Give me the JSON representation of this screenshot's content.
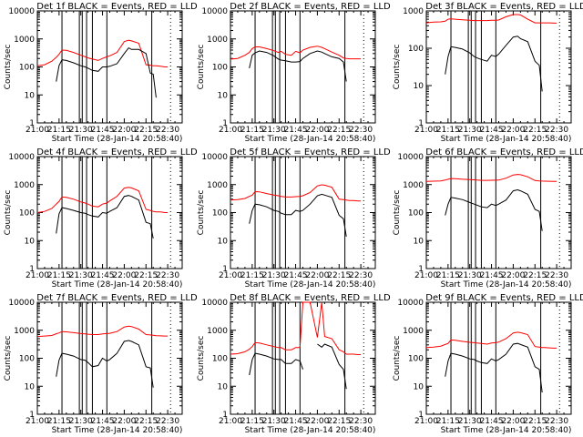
{
  "chart_data": {
    "common": {
      "type": "line",
      "xlabel": "Start Time (28-Jan-14 20:58:40)",
      "ylabel": "Counts/sec",
      "yscale": "log",
      "x_tick_labels": [
        "21:00",
        "21:15",
        "21:30",
        "21:45",
        "22:00",
        "22:15",
        "22:30"
      ],
      "x_range_minutes_after_2100": [
        0,
        100
      ],
      "legend": "BLACK = Events, RED = LLD",
      "series_colors": {
        "events": "#000000",
        "lld": "#ff0000"
      },
      "vertical_markers_minutes_after_2100": [
        17,
        29,
        31,
        34,
        38,
        48,
        79
      ],
      "dotted_marker_minutes_after_2100": 92,
      "x_samples_minutes": [
        0,
        5,
        10,
        13,
        15,
        17,
        20,
        25,
        30,
        33,
        35,
        38,
        42,
        45,
        48,
        50,
        55,
        60,
        63,
        65,
        70,
        75,
        78,
        80,
        82,
        85,
        88,
        90
      ]
    },
    "charts": [
      {
        "title": "Det 1f BLACK = Events, RED = LLD",
        "ylim": [
          1,
          10000
        ],
        "y_tick_labels": [
          "1",
          "10",
          "100",
          "1000",
          "10000"
        ],
        "events": [
          null,
          null,
          null,
          30,
          110,
          180,
          170,
          140,
          110,
          100,
          90,
          75,
          70,
          100,
          100,
          105,
          130,
          300,
          480,
          420,
          420,
          300,
          60,
          55,
          8,
          null,
          null,
          null
        ],
        "lld": [
          110,
          120,
          160,
          220,
          280,
          400,
          390,
          330,
          260,
          230,
          210,
          190,
          170,
          200,
          230,
          250,
          330,
          800,
          900,
          850,
          700,
          120,
          115,
          110,
          110,
          105,
          100,
          100
        ]
      },
      {
        "title": "Det 2f BLACK = Events, RED = LLD",
        "ylim": [
          1,
          10000
        ],
        "y_tick_labels": [
          "1",
          "10",
          "100",
          "1000",
          "10000"
        ],
        "events": [
          null,
          null,
          null,
          90,
          260,
          320,
          370,
          330,
          250,
          190,
          175,
          165,
          150,
          150,
          155,
          200,
          300,
          370,
          340,
          300,
          230,
          200,
          150,
          30,
          null,
          null,
          null,
          null
        ],
        "lld": [
          190,
          200,
          260,
          330,
          450,
          520,
          520,
          450,
          380,
          330,
          360,
          280,
          260,
          360,
          320,
          400,
          500,
          550,
          500,
          450,
          340,
          260,
          210,
          200,
          195,
          195,
          195,
          195
        ]
      },
      {
        "title": "Det 3f BLACK = Events, RED = LLD",
        "ylim": [
          1,
          1000
        ],
        "y_tick_labels": [
          "1",
          "10",
          "100",
          "1000"
        ],
        "events": [
          null,
          null,
          null,
          20,
          60,
          110,
          105,
          95,
          75,
          60,
          55,
          50,
          45,
          65,
          60,
          70,
          120,
          200,
          210,
          180,
          150,
          45,
          35,
          7,
          null,
          null,
          null,
          null
        ],
        "lld": [
          480,
          500,
          510,
          530,
          600,
          610,
          600,
          580,
          560,
          550,
          550,
          550,
          550,
          560,
          560,
          570,
          700,
          800,
          800,
          780,
          600,
          480,
          480,
          480,
          480,
          480,
          470,
          470
        ]
      },
      {
        "title": "Det 4f BLACK = Events, RED = LLD",
        "ylim": [
          1,
          10000
        ],
        "y_tick_labels": [
          "1",
          "10",
          "100",
          "1000",
          "10000"
        ],
        "events": [
          null,
          null,
          null,
          18,
          90,
          150,
          140,
          120,
          100,
          95,
          85,
          75,
          70,
          100,
          95,
          110,
          150,
          380,
          410,
          380,
          280,
          45,
          40,
          12,
          null,
          null,
          null,
          null
        ],
        "lld": [
          100,
          110,
          140,
          200,
          250,
          360,
          350,
          300,
          240,
          220,
          200,
          170,
          160,
          200,
          220,
          260,
          380,
          750,
          800,
          760,
          600,
          130,
          120,
          110,
          105,
          105,
          100,
          100
        ]
      },
      {
        "title": "Det 5f BLACK = Events, RED = LLD",
        "ylim": [
          1,
          10000
        ],
        "y_tick_labels": [
          "1",
          "10",
          "100",
          "1000",
          "10000"
        ],
        "events": [
          null,
          null,
          null,
          40,
          120,
          200,
          190,
          160,
          120,
          110,
          95,
          85,
          85,
          120,
          110,
          120,
          200,
          400,
          450,
          420,
          350,
          80,
          60,
          14,
          null,
          null,
          null,
          null
        ],
        "lld": [
          280,
          290,
          320,
          380,
          420,
          560,
          550,
          480,
          420,
          400,
          380,
          360,
          360,
          370,
          380,
          400,
          520,
          900,
          980,
          950,
          800,
          300,
          290,
          280,
          270,
          270,
          260,
          260
        ]
      },
      {
        "title": "Det 6f BLACK = Events, RED = LLD",
        "ylim": [
          1,
          10000
        ],
        "y_tick_labels": [
          "1",
          "10",
          "100",
          "1000",
          "10000"
        ],
        "events": [
          null,
          null,
          null,
          80,
          200,
          350,
          330,
          290,
          230,
          200,
          185,
          160,
          150,
          200,
          180,
          200,
          280,
          600,
          650,
          600,
          450,
          130,
          110,
          22,
          null,
          null,
          null,
          null
        ],
        "lld": [
          1300,
          1320,
          1350,
          1450,
          1550,
          1650,
          1620,
          1550,
          1500,
          1480,
          1450,
          1420,
          1420,
          1430,
          1440,
          1450,
          1700,
          2200,
          2300,
          2250,
          1900,
          1400,
          1350,
          1330,
          1320,
          1310,
          1300,
          1300
        ]
      },
      {
        "title": "Det 7f BLACK = Events, RED = LLD",
        "ylim": [
          1,
          10000
        ],
        "y_tick_labels": [
          "1",
          "10",
          "100",
          "1000",
          "10000"
        ],
        "events": [
          null,
          null,
          null,
          22,
          85,
          150,
          140,
          120,
          90,
          85,
          70,
          50,
          55,
          100,
          80,
          90,
          150,
          400,
          430,
          400,
          300,
          50,
          45,
          9,
          null,
          null,
          null,
          null
        ],
        "lld": [
          600,
          620,
          650,
          750,
          800,
          900,
          880,
          820,
          760,
          740,
          720,
          700,
          700,
          740,
          760,
          780,
          900,
          1300,
          1400,
          1350,
          1100,
          700,
          680,
          660,
          640,
          630,
          620,
          620
        ]
      },
      {
        "title": "Det 8f BLACK = Events, RED = LLD",
        "ylim": [
          1,
          10000
        ],
        "y_tick_labels": [
          "1",
          "10",
          "100",
          "1000",
          "10000"
        ],
        "events": [
          null,
          null,
          null,
          25,
          90,
          150,
          140,
          120,
          95,
          90,
          90,
          65,
          65,
          90,
          80,
          40,
          null,
          320,
          250,
          320,
          250,
          60,
          40,
          8,
          null,
          null,
          null,
          null
        ],
        "lld": [
          140,
          145,
          170,
          210,
          260,
          360,
          350,
          300,
          260,
          240,
          240,
          200,
          200,
          240,
          240,
          10000,
          10000,
          550,
          10000,
          600,
          500,
          200,
          170,
          140,
          140,
          140,
          135,
          135
        ]
      },
      {
        "title": "Det 9f BLACK = Events, RED = LLD",
        "ylim": [
          1,
          10000
        ],
        "y_tick_labels": [
          "1",
          "10",
          "100",
          "1000",
          "10000"
        ],
        "events": [
          null,
          null,
          null,
          22,
          80,
          150,
          140,
          120,
          95,
          90,
          80,
          70,
          65,
          95,
          80,
          90,
          140,
          320,
          340,
          310,
          250,
          50,
          40,
          6,
          null,
          null,
          null,
          null
        ],
        "lld": [
          240,
          250,
          270,
          310,
          340,
          450,
          440,
          400,
          370,
          360,
          350,
          340,
          320,
          350,
          360,
          380,
          500,
          800,
          850,
          820,
          700,
          260,
          250,
          240,
          240,
          235,
          230,
          230
        ]
      }
    ]
  }
}
